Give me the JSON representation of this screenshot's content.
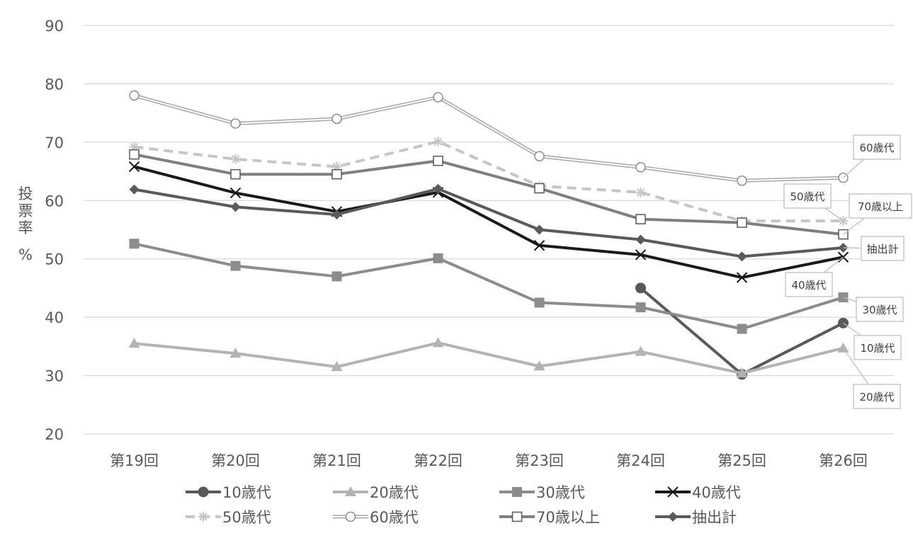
{
  "chart_data": {
    "type": "line",
    "title": "",
    "xlabel": "",
    "ylabel": "投票率",
    "yunit": "%",
    "ylim": [
      20,
      90
    ],
    "yticks": [
      20,
      30,
      40,
      50,
      60,
      70,
      80,
      90
    ],
    "grid": true,
    "legend_position": "bottom",
    "categories": [
      "第19回",
      "第20回",
      "第21回",
      "第22回",
      "第23回",
      "第24回",
      "第25回",
      "第26回"
    ],
    "series": [
      {
        "name": "10歳代",
        "values": [
          null,
          null,
          null,
          null,
          null,
          45.0,
          30.2,
          39.0
        ],
        "color": "#595959",
        "marker": "circle",
        "dash": false
      },
      {
        "name": "20歳代",
        "values": [
          35.5,
          33.8,
          31.5,
          35.6,
          31.6,
          34.1,
          30.4,
          34.7
        ],
        "color": "#b3b3b3",
        "marker": "triangle",
        "dash": false
      },
      {
        "name": "30歳代",
        "values": [
          52.6,
          48.8,
          47.0,
          50.1,
          42.5,
          41.7,
          38.0,
          43.4
        ],
        "color": "#8c8c8c",
        "marker": "square",
        "dash": false
      },
      {
        "name": "40歳代",
        "values": [
          65.8,
          61.3,
          58.1,
          61.4,
          52.3,
          50.7,
          46.8,
          50.3
        ],
        "color": "#1a1a1a",
        "marker": "x",
        "dash": false
      },
      {
        "name": "50歳代",
        "values": [
          69.2,
          67.1,
          65.8,
          70.1,
          62.5,
          61.4,
          56.5,
          56.5
        ],
        "color": "#c6c6c6",
        "marker": "star",
        "dash": true
      },
      {
        "name": "60歳代",
        "values": [
          78.0,
          73.2,
          74.0,
          77.7,
          67.6,
          65.7,
          63.4,
          63.9
        ],
        "color": "#a6a6a6",
        "marker": "open-circle",
        "dash": false,
        "double": true
      },
      {
        "name": "70歳以上",
        "values": [
          67.9,
          64.5,
          64.5,
          66.8,
          62.1,
          56.8,
          56.2,
          54.2
        ],
        "color": "#7f7f7f",
        "marker": "open-square",
        "dash": false
      },
      {
        "name": "抽出計",
        "values": [
          61.9,
          58.9,
          57.6,
          62.0,
          55.0,
          53.3,
          50.4,
          51.9
        ],
        "color": "#5a5a5a",
        "marker": "diamond",
        "dash": false
      }
    ],
    "callouts": [
      "60歳代",
      "50歳代",
      "70歳以上",
      "抽出計",
      "40歳代",
      "30歳代",
      "10歳代",
      "20歳代"
    ]
  }
}
